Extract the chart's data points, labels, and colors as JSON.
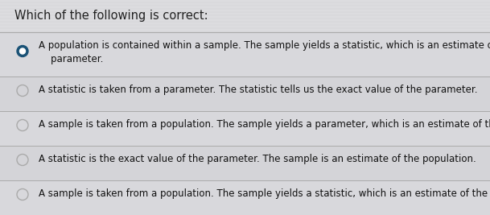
{
  "title": "Which of the following is correct:",
  "title_fontsize": 10.5,
  "background_color": "#c8c8cc",
  "panel_color": "#dcdcdf",
  "options": [
    {
      "text": "A population is contained within a sample. The sample yields a statistic, which is an estimate of the\n    parameter.",
      "selected": true,
      "bullet_color_fill": "#1a5276",
      "bullet_color_edge": "#1a5276",
      "text_color": "#111111",
      "row": 1
    },
    {
      "text": "A statistic is taken from a parameter. The statistic tells us the exact value of the parameter.",
      "selected": false,
      "bullet_color_fill": "none",
      "bullet_color_edge": "#999999",
      "text_color": "#111111",
      "row": 2
    },
    {
      "text": "A sample is taken from a population. The sample yields a parameter, which is an estimate of the stat",
      "selected": false,
      "bullet_color_fill": "none",
      "bullet_color_edge": "#999999",
      "text_color": "#111111",
      "row": 3
    },
    {
      "text": "A statistic is the exact value of the parameter. The sample is an estimate of the population.",
      "selected": false,
      "bullet_color_fill": "none",
      "bullet_color_edge": "#999999",
      "text_color": "#111111",
      "row": 4
    },
    {
      "text": "A sample is taken from a population. The sample yields a statistic, which is an estimate of the param",
      "selected": false,
      "bullet_color_fill": "none",
      "bullet_color_edge": "#999999",
      "text_color": "#111111",
      "row": 5
    }
  ],
  "divider_color": "#aaaaaa",
  "option_fontsize": 8.5,
  "fig_width": 6.09,
  "fig_height": 2.67,
  "dpi": 100
}
